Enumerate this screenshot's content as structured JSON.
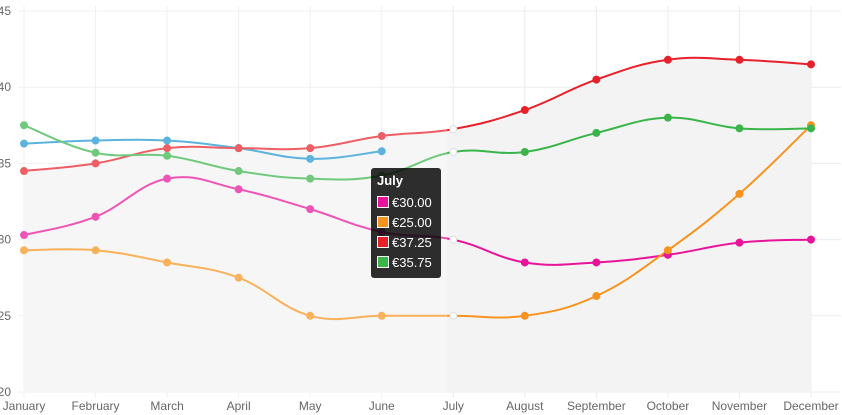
{
  "chart_data": {
    "type": "line",
    "title": "",
    "xlabel": "",
    "ylabel": "",
    "ylim": [
      20,
      45
    ],
    "yticks": [
      20,
      25,
      30,
      35,
      40,
      45
    ],
    "grid": true,
    "categories": [
      "January",
      "February",
      "March",
      "April",
      "May",
      "June",
      "July",
      "August",
      "September",
      "October",
      "November",
      "December"
    ],
    "series": [
      {
        "color": "#1e96d2",
        "fill": false,
        "values": [
          36.3,
          36.5,
          36.5,
          36.0,
          35.3,
          35.8,
          null,
          null,
          null,
          null,
          null,
          null
        ]
      },
      {
        "color": "#e8e8e8",
        "fill": true,
        "values": [
          30.3,
          31.5,
          34.0,
          33.3,
          32.0,
          30.5,
          30.0,
          28.5,
          28.5,
          29.0,
          29.8,
          30.0
        ]
      },
      {
        "color": "#f3f3f3",
        "fill": true,
        "values": [
          34.5,
          35.0,
          36.0,
          36.0,
          36.0,
          36.8,
          37.25,
          38.5,
          40.5,
          41.8,
          41.8,
          41.5
        ]
      },
      {
        "color": "#e8139a",
        "fill": false,
        "values": [
          30.3,
          31.5,
          34.0,
          33.3,
          32.0,
          30.5,
          30.0,
          28.5,
          28.5,
          29.0,
          29.8,
          30.0
        ]
      },
      {
        "color": "#f7931e",
        "fill": false,
        "values": [
          29.3,
          29.3,
          28.5,
          27.5,
          25.0,
          25.0,
          25.0,
          25.0,
          26.3,
          29.3,
          33.0,
          37.5
        ]
      },
      {
        "color": "#e8202a",
        "fill": false,
        "values": [
          34.5,
          35.0,
          36.0,
          36.0,
          36.0,
          36.8,
          37.25,
          38.5,
          40.5,
          41.8,
          41.8,
          41.5
        ]
      },
      {
        "color": "#39b54a",
        "fill": false,
        "values": [
          37.5,
          35.7,
          35.5,
          34.5,
          34.0,
          34.2,
          35.75,
          35.75,
          37.0,
          38.0,
          37.3,
          37.3
        ]
      }
    ],
    "highlight_index": 6,
    "faded_before_index": 6,
    "tooltip": {
      "title": "July",
      "items": [
        {
          "color": "#e8139a",
          "label": "€30.00"
        },
        {
          "color": "#f7931e",
          "label": "€25.00"
        },
        {
          "color": "#e8202a",
          "label": "€37.25"
        },
        {
          "color": "#39b54a",
          "label": "€35.75"
        }
      ]
    }
  }
}
